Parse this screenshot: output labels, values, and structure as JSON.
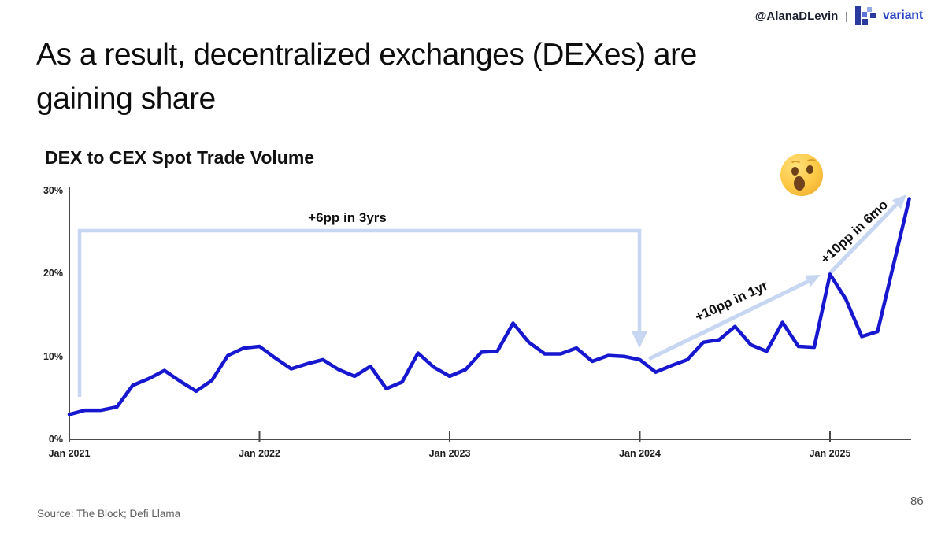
{
  "header": {
    "handle": "@AlanaDLevin",
    "separator": "|",
    "brand": "variant",
    "brand_color": "#2443c4"
  },
  "title": {
    "line1": "As a result, decentralized exchanges (DEXes) are",
    "line2": "gaining share"
  },
  "chart_data": {
    "type": "line",
    "title": "DEX to CEX Spot Trade Volume",
    "xlabel": "",
    "ylabel": "",
    "ylim": [
      0,
      30
    ],
    "grid": false,
    "legend": "none",
    "unit": "%",
    "line_color": "#1717cf",
    "annotation_color": "#c7d6f1",
    "x_tick_labels": [
      "Jan 2021",
      "Jan 2022",
      "Jan 2023",
      "Jan 2024",
      "Jan 2025"
    ],
    "y_tick_labels": [
      "0%",
      "10%",
      "20%",
      "30%"
    ],
    "x": [
      "Jan 2021",
      "Feb 2021",
      "Mar 2021",
      "Apr 2021",
      "May 2021",
      "Jun 2021",
      "Jul 2021",
      "Aug 2021",
      "Sep 2021",
      "Oct 2021",
      "Nov 2021",
      "Dec 2021",
      "Jan 2022",
      "Feb 2022",
      "Mar 2022",
      "Apr 2022",
      "May 2022",
      "Jun 2022",
      "Jul 2022",
      "Aug 2022",
      "Sep 2022",
      "Oct 2022",
      "Nov 2022",
      "Dec 2022",
      "Jan 2023",
      "Feb 2023",
      "Mar 2023",
      "Apr 2023",
      "May 2023",
      "Jun 2023",
      "Jul 2023",
      "Aug 2023",
      "Sep 2023",
      "Oct 2023",
      "Nov 2023",
      "Dec 2023",
      "Jan 2024",
      "Feb 2024",
      "Mar 2024",
      "Apr 2024",
      "May 2024",
      "Jun 2024",
      "Jul 2024",
      "Aug 2024",
      "Sep 2024",
      "Oct 2024",
      "Nov 2024",
      "Dec 2024",
      "Jan 2025",
      "Feb 2025",
      "Mar 2025",
      "Apr 2025",
      "May 2025",
      "Jun 2025"
    ],
    "values": [
      3.0,
      3.5,
      3.5,
      3.9,
      6.5,
      7.3,
      8.3,
      7.0,
      5.8,
      7.1,
      10.1,
      11.0,
      11.2,
      9.8,
      8.5,
      9.1,
      9.6,
      8.4,
      7.6,
      8.8,
      6.1,
      6.9,
      10.4,
      8.7,
      7.6,
      8.4,
      10.5,
      10.6,
      14.0,
      11.7,
      10.3,
      10.3,
      11.0,
      9.4,
      10.1,
      10.0,
      9.6,
      8.1,
      8.9,
      9.6,
      11.7,
      12.0,
      13.6,
      11.4,
      10.6,
      14.1,
      11.2,
      11.1,
      19.9,
      16.9,
      12.4,
      13.0,
      21.0,
      29.0
    ],
    "annotations": [
      {
        "label": "+6pp in 3yrs",
        "type": "bracket-arrow",
        "from": "Jan 2021 (~5%)",
        "to": "Jan 2024 (~11%)"
      },
      {
        "label": "+10pp in 1yr",
        "type": "arrow",
        "from": "Jan 2024 (~10%)",
        "to": "Jan 2025 (~20%)"
      },
      {
        "label": "+10pp in 6mo",
        "type": "arrow",
        "from": "Jan 2025 (~20%)",
        "to": "Jun 2025 (~29%)"
      },
      {
        "label": "face-with-open-mouth-emoji",
        "type": "emoji"
      }
    ]
  },
  "footer": {
    "source": "Source: The Block; Defi Llama",
    "page": "86"
  }
}
